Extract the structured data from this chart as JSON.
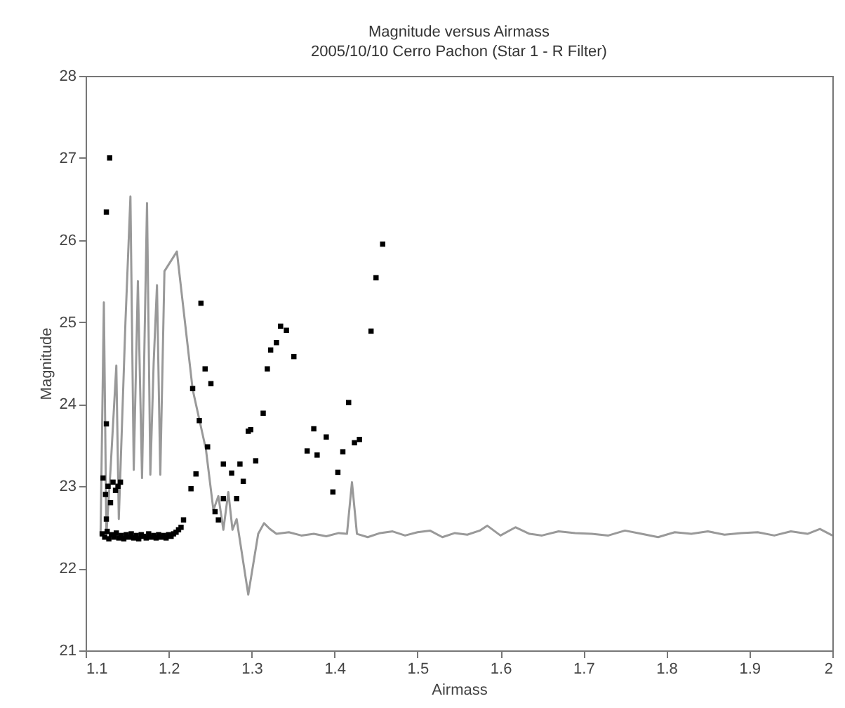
{
  "chart_data": {
    "type": "scatter",
    "title": "Magnitude versus Airmass",
    "subtitle": "2005/10/10 Cerro Pachon (Star 1 - R Filter)",
    "xlabel": "Airmass",
    "ylabel": "Magnitude",
    "xlim": [
      1.1,
      2.0
    ],
    "ylim": [
      21,
      28
    ],
    "xticks": [
      1.1,
      1.2,
      1.3,
      1.4,
      1.5,
      1.6,
      1.7,
      1.8,
      1.9,
      2
    ],
    "yticks": [
      21,
      22,
      23,
      24,
      25,
      26,
      27,
      28
    ],
    "grid": false,
    "series": [
      {
        "type": "line",
        "color": "#999999",
        "line_style": "solid",
        "marker": "none",
        "x": [
          1.118,
          1.122,
          1.125,
          1.13,
          1.137,
          1.14,
          1.148,
          1.154,
          1.158,
          1.163,
          1.168,
          1.174,
          1.178,
          1.182,
          1.186,
          1.19,
          1.195,
          1.21,
          1.229,
          1.245,
          1.254,
          1.26,
          1.266,
          1.272,
          1.277,
          1.282,
          1.296,
          1.308,
          1.315,
          1.322,
          1.33,
          1.345,
          1.36,
          1.375,
          1.39,
          1.405,
          1.415,
          1.421,
          1.427,
          1.44,
          1.455,
          1.47,
          1.485,
          1.5,
          1.515,
          1.53,
          1.545,
          1.56,
          1.575,
          1.584,
          1.6,
          1.618,
          1.635,
          1.65,
          1.67,
          1.69,
          1.71,
          1.73,
          1.75,
          1.77,
          1.79,
          1.81,
          1.83,
          1.85,
          1.87,
          1.89,
          1.91,
          1.93,
          1.95,
          1.97,
          1.985,
          2.0
        ],
        "values": [
          22.4,
          25.24,
          22.4,
          23.2,
          24.47,
          22.6,
          25.0,
          26.53,
          23.2,
          25.5,
          23.1,
          26.45,
          23.14,
          24.5,
          25.45,
          23.14,
          25.62,
          25.86,
          24.18,
          23.45,
          22.71,
          22.88,
          22.47,
          22.93,
          22.47,
          22.6,
          21.68,
          22.42,
          22.55,
          22.48,
          22.42,
          22.44,
          22.4,
          22.42,
          22.39,
          22.43,
          22.42,
          23.05,
          22.42,
          22.38,
          22.43,
          22.45,
          22.4,
          22.44,
          22.46,
          22.38,
          22.43,
          22.41,
          22.46,
          22.52,
          22.4,
          22.5,
          22.42,
          22.4,
          22.45,
          22.43,
          22.42,
          22.4,
          22.46,
          22.42,
          22.38,
          22.44,
          22.42,
          22.45,
          22.41,
          22.43,
          22.44,
          22.4,
          22.45,
          22.42,
          22.48,
          22.4
        ]
      },
      {
        "type": "scatter",
        "color": "#000000",
        "marker": "square",
        "x": [
          1.12,
          1.123,
          1.126,
          1.128,
          1.131,
          1.134,
          1.137,
          1.14,
          1.143,
          1.146,
          1.149,
          1.152,
          1.155,
          1.158,
          1.161,
          1.164,
          1.167,
          1.17,
          1.173,
          1.176,
          1.179,
          1.182,
          1.185,
          1.188,
          1.191,
          1.194,
          1.197,
          1.2,
          1.203,
          1.206,
          1.209,
          1.212,
          1.215,
          1.121,
          1.124,
          1.127,
          1.13,
          1.133,
          1.136,
          1.139,
          1.142,
          1.125,
          1.129,
          1.125,
          1.125,
          1.239,
          1.244,
          1.251,
          1.229,
          1.237,
          1.247,
          1.233,
          1.227,
          1.218,
          1.266,
          1.286,
          1.276,
          1.29,
          1.266,
          1.282,
          1.256,
          1.26,
          1.305,
          1.296,
          1.299,
          1.314,
          1.319,
          1.323,
          1.33,
          1.335,
          1.342,
          1.351,
          1.375,
          1.39,
          1.367,
          1.379,
          1.417,
          1.41,
          1.424,
          1.43,
          1.404,
          1.398,
          1.458,
          1.45,
          1.444
        ],
        "values": [
          22.42,
          22.38,
          22.45,
          22.36,
          22.41,
          22.38,
          22.43,
          22.37,
          22.4,
          22.36,
          22.41,
          22.38,
          22.42,
          22.37,
          22.4,
          22.36,
          22.41,
          22.39,
          22.37,
          22.42,
          22.38,
          22.4,
          22.37,
          22.41,
          22.38,
          22.4,
          22.37,
          22.41,
          22.39,
          22.42,
          22.44,
          22.47,
          22.5,
          23.1,
          22.9,
          23.0,
          22.8,
          23.05,
          22.95,
          23.0,
          23.05,
          22.6,
          27.0,
          26.34,
          23.76,
          25.23,
          24.43,
          24.25,
          24.19,
          23.8,
          23.48,
          23.15,
          22.97,
          22.59,
          23.27,
          23.27,
          23.16,
          23.06,
          22.85,
          22.85,
          22.69,
          22.59,
          23.31,
          23.67,
          23.69,
          23.89,
          24.43,
          24.66,
          24.75,
          24.95,
          24.9,
          24.58,
          23.7,
          23.6,
          23.43,
          23.38,
          24.02,
          23.42,
          23.53,
          23.57,
          23.17,
          22.93,
          25.95,
          25.54,
          24.89
        ]
      }
    ]
  }
}
